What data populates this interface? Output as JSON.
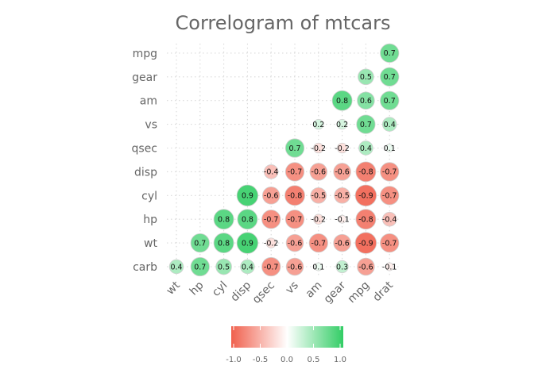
{
  "chart_data": {
    "type": "heatmap",
    "title": "Correlogram of mtcars",
    "x_categories": [
      "wt",
      "hp",
      "cyl",
      "disp",
      "qsec",
      "vs",
      "am",
      "gear",
      "mpg",
      "drat"
    ],
    "y_categories": [
      "carb",
      "wt",
      "hp",
      "cyl",
      "disp",
      "qsec",
      "vs",
      "am",
      "gear",
      "mpg"
    ],
    "values": [
      [
        0.4,
        0.7,
        0.5,
        0.4,
        -0.7,
        -0.6,
        0.1,
        0.3,
        -0.6,
        -0.1
      ],
      [
        null,
        0.7,
        0.8,
        0.9,
        -0.2,
        -0.6,
        -0.7,
        -0.6,
        -0.9,
        -0.7
      ],
      [
        null,
        null,
        0.8,
        0.8,
        -0.7,
        -0.7,
        -0.2,
        -0.1,
        -0.8,
        -0.4
      ],
      [
        null,
        null,
        null,
        0.9,
        -0.6,
        -0.8,
        -0.5,
        -0.5,
        -0.9,
        -0.7
      ],
      [
        null,
        null,
        null,
        null,
        -0.4,
        -0.7,
        -0.6,
        -0.6,
        -0.8,
        -0.7
      ],
      [
        null,
        null,
        null,
        null,
        null,
        0.7,
        -0.2,
        -0.2,
        0.4,
        0.1
      ],
      [
        null,
        null,
        null,
        null,
        null,
        null,
        0.2,
        0.2,
        0.7,
        0.4
      ],
      [
        null,
        null,
        null,
        null,
        null,
        null,
        null,
        0.8,
        0.6,
        0.7
      ],
      [
        null,
        null,
        null,
        null,
        null,
        null,
        null,
        null,
        0.5,
        0.7
      ],
      [
        null,
        null,
        null,
        null,
        null,
        null,
        null,
        null,
        null,
        0.7
      ]
    ],
    "color_scale": {
      "range": [
        -1.0,
        1.0
      ],
      "low": "#f0604d",
      "mid": "#ffffff",
      "high": "#32cd65",
      "ticks": [
        "-1.0",
        "-0.5",
        "0.0",
        "0.5",
        "1.0"
      ]
    },
    "grid": true,
    "legend_position": "bottom"
  }
}
